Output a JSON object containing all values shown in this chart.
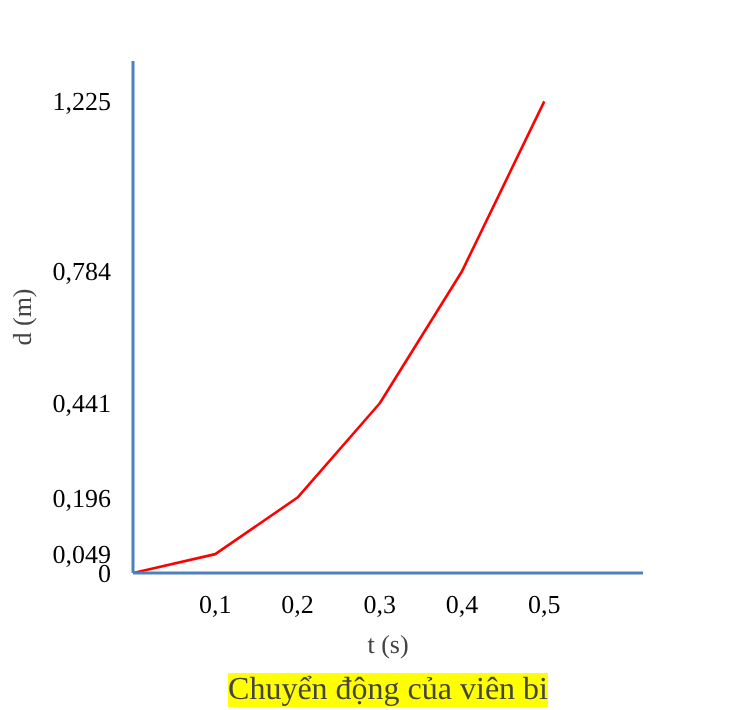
{
  "chart_data": {
    "type": "line",
    "xlabel": "t (s)",
    "ylabel": "d (m)",
    "x": [
      0,
      0.1,
      0.2,
      0.3,
      0.4,
      0.5
    ],
    "series": [
      {
        "color": "#ff0000",
        "values": [
          0,
          0.049,
          0.196,
          0.441,
          0.784,
          1.225
        ]
      }
    ],
    "xlim": [
      0,
      0.62
    ],
    "ylim": [
      0,
      1.33
    ],
    "xticks": [
      {
        "value": 0.1,
        "label": "0,1"
      },
      {
        "value": 0.2,
        "label": "0,2"
      },
      {
        "value": 0.3,
        "label": "0,3"
      },
      {
        "value": 0.4,
        "label": "0,4"
      },
      {
        "value": 0.5,
        "label": "0,5"
      }
    ],
    "yticks": [
      0,
      {
        "value": 0.049,
        "label": "0,049"
      },
      {
        "value": 0.196,
        "label": "0,196"
      },
      {
        "value": 0.441,
        "label": "0,441"
      },
      {
        "value": 0.784,
        "label": "0,784"
      },
      {
        "value": 1.225,
        "label": "1,225"
      }
    ],
    "grid": false,
    "marker": "none",
    "line_style": "solid",
    "annotations": [
      "Chuyển động của viên bi"
    ]
  }
}
